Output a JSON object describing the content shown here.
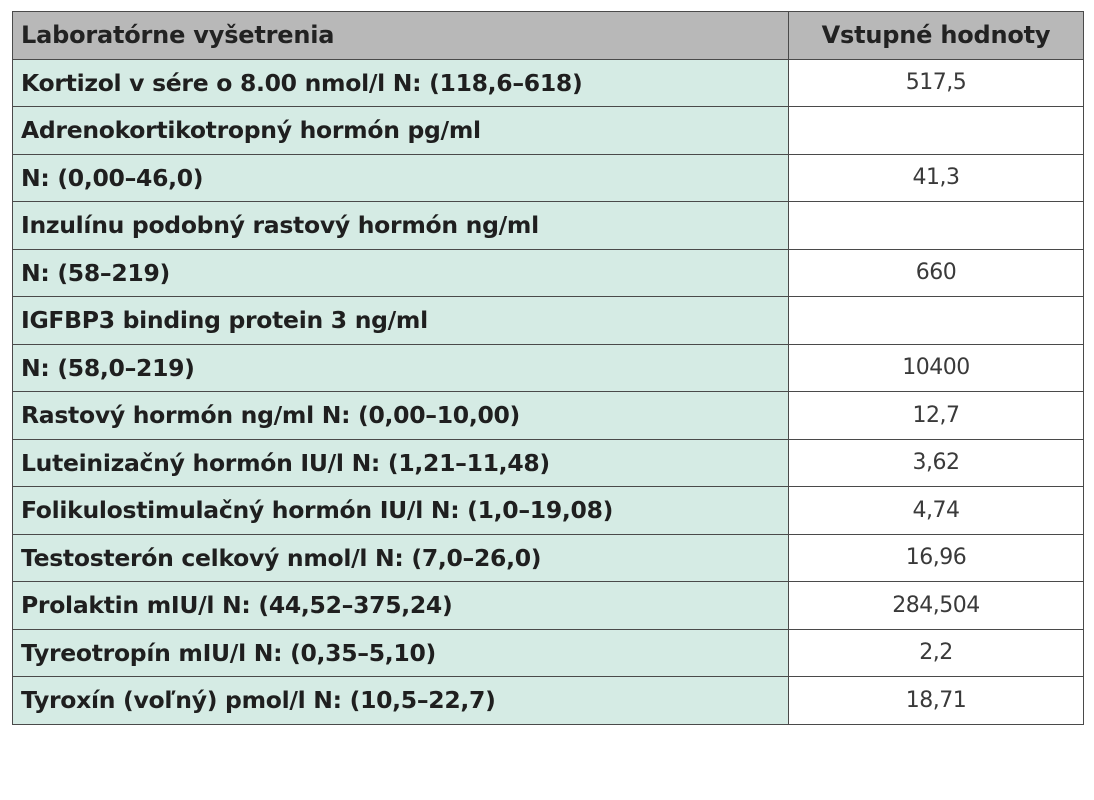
{
  "table": {
    "headers": [
      "Laboratórne vyšetrenia",
      "Vstupné hodnoty"
    ],
    "rows": [
      {
        "label": "Kortizol v sére o 8.00 nmol/l  N: (118,6–618)",
        "value": "517,5"
      },
      {
        "label": "Adrenokortikotropný hormón pg/ml",
        "value": ""
      },
      {
        "label": "N: (0,00–46,0)",
        "value": "41,3"
      },
      {
        "label": "Inzulínu podobný rastový hormón ng/ml",
        "value": ""
      },
      {
        "label": "N: (58–219)",
        "value": "660"
      },
      {
        "label": "IGFBP3 binding protein 3 ng/ml",
        "value": ""
      },
      {
        "label": "N: (58,0–219)",
        "value": "10400"
      },
      {
        "label": "Rastový hormón  ng/ml  N: (0,00–10,00)",
        "value": "12,7"
      },
      {
        "label": "Luteinizačný hormón IU/l N: (1,21–11,48)",
        "value": "3,62"
      },
      {
        "label": "Folikulostimulačný hormón IU/l N: (1,0–19,08)",
        "value": "4,74"
      },
      {
        "label": "Testosterón celkový nmol/l N: (7,0–26,0)",
        "value": "16,96"
      },
      {
        "label": "Prolaktin mIU/l N: (44,52–375,24)",
        "value": "284,504"
      },
      {
        "label": "Tyreotropín  mIU/l N: (0,35–5,10)",
        "value": "2,2"
      },
      {
        "label": "Tyroxín (voľný) pmol/l N: (10,5–22,7)",
        "value": "18,71"
      }
    ]
  },
  "colors": {
    "header_bg": "#b8b8b8",
    "label_bg": "#d5ebe4",
    "value_bg": "#ffffff",
    "border": "#4a4a4a"
  }
}
